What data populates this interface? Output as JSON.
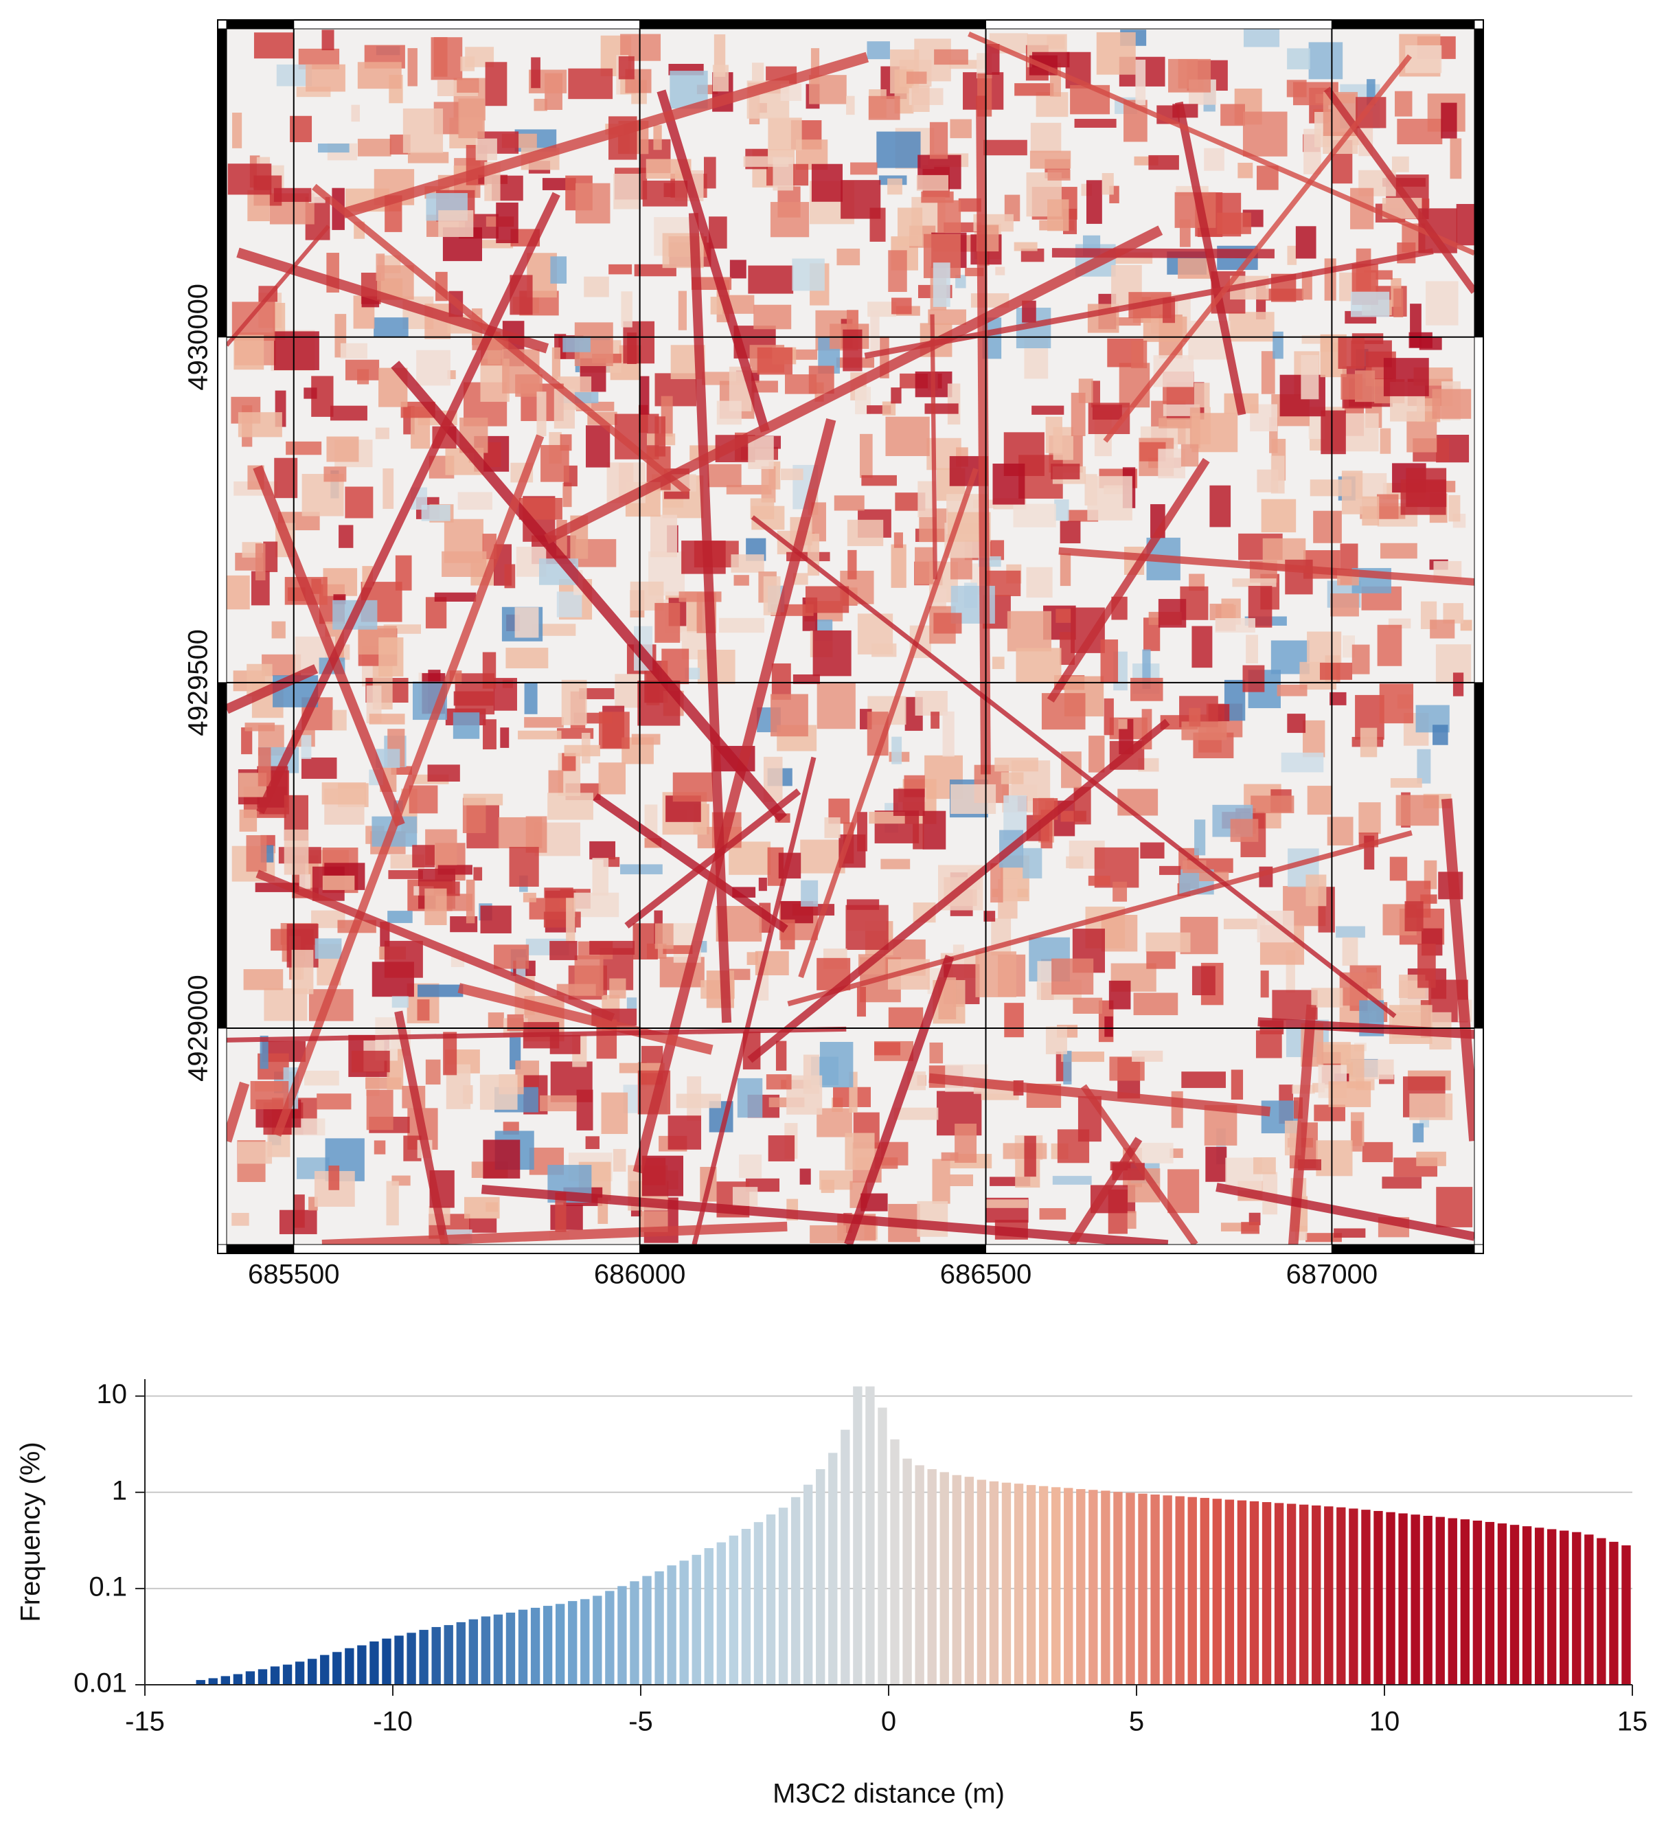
{
  "chart_data": [
    {
      "type": "map",
      "xlim": [
        685403,
        687206
      ],
      "ylim": [
        4928687,
        4930446
      ],
      "xticks": [
        685500,
        686000,
        686500,
        687000
      ],
      "yticks": [
        4929000,
        4929500,
        4930000
      ],
      "grid": true,
      "colormap": [
        "#134a97",
        "#6a9fcc",
        "#b9d2e2",
        "#f2f0ef",
        "#efb79c",
        "#d9544a",
        "#b00d23"
      ]
    },
    {
      "type": "histogram",
      "xlabel": "M3C2 distance (m)",
      "ylabel": "Frequency (%)",
      "bins": [
        -14,
        -13.75,
        -13.5,
        -13.25,
        -13,
        -12.75,
        -12.5,
        -12.25,
        -12,
        -11.75,
        -11.5,
        -11.25,
        -11,
        -10.75,
        -10.5,
        -10.25,
        -10,
        -9.75,
        -9.5,
        -9.25,
        -9,
        -8.75,
        -8.5,
        -8.25,
        -8,
        -7.75,
        -7.5,
        -7.25,
        -7,
        -6.75,
        -6.5,
        -6.25,
        -6,
        -5.75,
        -5.5,
        -5.25,
        -5,
        -4.75,
        -4.5,
        -4.25,
        -4,
        -3.75,
        -3.5,
        -3.25,
        -3,
        -2.75,
        -2.5,
        -2.25,
        -2,
        -1.75,
        -1.5,
        -1.25,
        -1,
        -0.75,
        -0.5,
        -0.25,
        0,
        0.25,
        0.5,
        0.75,
        1,
        1.25,
        1.5,
        1.75,
        2,
        2.25,
        2.5,
        2.75,
        3,
        3.25,
        3.5,
        3.75,
        4,
        4.25,
        4.5,
        4.75,
        5,
        5.25,
        5.5,
        5.75,
        6,
        6.25,
        6.5,
        6.75,
        7,
        7.25,
        7.5,
        7.75,
        8,
        8.25,
        8.5,
        8.75,
        9,
        9.25,
        9.5,
        9.75,
        10,
        10.25,
        10.5,
        10.75,
        11,
        11.25,
        11.5,
        11.75,
        12,
        12.25,
        12.5,
        12.75,
        13,
        13.25,
        13.5,
        13.75,
        14,
        14.25,
        14.5,
        14.75,
        15
      ],
      "values": [
        0.0112,
        0.0117,
        0.0123,
        0.0129,
        0.0138,
        0.0145,
        0.0155,
        0.0162,
        0.0174,
        0.0186,
        0.0204,
        0.0219,
        0.024,
        0.0257,
        0.0282,
        0.0302,
        0.0324,
        0.0347,
        0.0372,
        0.0398,
        0.0417,
        0.0447,
        0.0479,
        0.0513,
        0.0537,
        0.0562,
        0.0603,
        0.0631,
        0.0661,
        0.0692,
        0.0741,
        0.0776,
        0.0841,
        0.0944,
        0.106,
        0.119,
        0.135,
        0.151,
        0.174,
        0.195,
        0.224,
        0.263,
        0.302,
        0.355,
        0.417,
        0.49,
        0.589,
        0.692,
        0.891,
        1.2,
        1.74,
        2.57,
        4.47,
        12.6,
        12.6,
        7.59,
        3.55,
        2.24,
        1.91,
        1.74,
        1.62,
        1.51,
        1.45,
        1.35,
        1.3,
        1.26,
        1.23,
        1.19,
        1.16,
        1.13,
        1.11,
        1.08,
        1.06,
        1.04,
        1.01,
        0.989,
        0.968,
        0.948,
        0.929,
        0.91,
        0.893,
        0.875,
        0.857,
        0.839,
        0.824,
        0.807,
        0.791,
        0.774,
        0.76,
        0.745,
        0.73,
        0.714,
        0.698,
        0.678,
        0.659,
        0.64,
        0.622,
        0.604,
        0.587,
        0.57,
        0.555,
        0.538,
        0.524,
        0.508,
        0.492,
        0.475,
        0.459,
        0.444,
        0.429,
        0.414,
        0.4,
        0.386,
        0.364,
        0.334,
        0.306,
        0.281
      ],
      "xlim": [
        -15,
        15
      ],
      "xticks": [
        -15,
        -10,
        -5,
        0,
        5,
        10,
        15
      ],
      "ylim": [
        0.01,
        15
      ],
      "yticks": [
        0.01,
        0.1,
        1,
        10
      ],
      "log_y": true,
      "grid": true,
      "color_range": [
        -10,
        10
      ],
      "colormap": [
        "#134a97",
        "#6a9fcc",
        "#b9d2e2",
        "#dcdcdc",
        "#efb79c",
        "#d9544a",
        "#b00d23"
      ]
    }
  ]
}
